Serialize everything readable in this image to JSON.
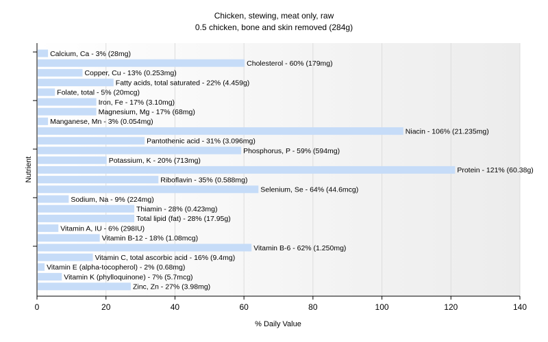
{
  "chart_data": {
    "type": "bar",
    "orientation": "horizontal",
    "title": "Chicken, stewing, meat only, raw",
    "subtitle": "0.5 chicken, bone and skin removed (284g)",
    "xlabel": "% Daily Value",
    "ylabel": "Nutrient",
    "xlim": [
      0,
      140
    ],
    "xticks": [
      0,
      20,
      40,
      60,
      80,
      100,
      120,
      140
    ],
    "grid": true,
    "bar_color": "#c6dcf8",
    "categories": [
      "Calcium, Ca - 3% (28mg)",
      "Cholesterol - 60% (179mg)",
      "Copper, Cu - 13% (0.253mg)",
      "Fatty acids, total saturated - 22% (4.459g)",
      "Folate, total - 5% (20mcg)",
      "Iron, Fe - 17% (3.10mg)",
      "Magnesium, Mg - 17% (68mg)",
      "Manganese, Mn - 3% (0.054mg)",
      "Niacin - 106% (21.235mg)",
      "Pantothenic acid - 31% (3.096mg)",
      "Phosphorus, P - 59% (594mg)",
      "Potassium, K - 20% (713mg)",
      "Protein - 121% (60.38g)",
      "Riboflavin - 35% (0.588mg)",
      "Selenium, Se - 64% (44.6mcg)",
      "Sodium, Na - 9% (224mg)",
      "Thiamin - 28% (0.423mg)",
      "Total lipid (fat) - 28% (17.95g)",
      "Vitamin A, IU - 6% (298IU)",
      "Vitamin B-12 - 18% (1.08mcg)",
      "Vitamin B-6 - 62% (1.250mg)",
      "Vitamin C, total ascorbic acid - 16% (9.4mg)",
      "Vitamin E (alpha-tocopherol) - 2% (0.68mg)",
      "Vitamin K (phylloquinone) - 7% (5.7mcg)",
      "Zinc, Zn - 27% (3.98mg)"
    ],
    "values": [
      3,
      60,
      13,
      22,
      5,
      17,
      17,
      3,
      106,
      31,
      59,
      20,
      121,
      35,
      64,
      9,
      28,
      28,
      6,
      18,
      62,
      16,
      2,
      7,
      27
    ]
  }
}
